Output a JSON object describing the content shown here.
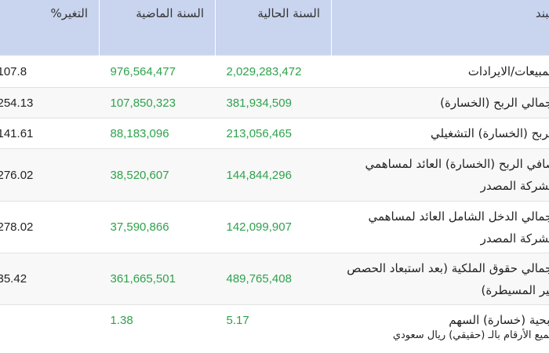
{
  "table": {
    "headers": [
      "البند",
      "السنة الحالية",
      "السنة الماضية",
      "التغير%"
    ],
    "rows": [
      {
        "label": "المبيعات/الايرادات",
        "current": "2,029,283,472",
        "previous": "976,564,477",
        "change": "107.8"
      },
      {
        "label": "إجمالي الربح (الخسارة)",
        "current": "381,934,509",
        "previous": "107,850,323",
        "change": "254.13"
      },
      {
        "label": "الربح (الخسارة) التشغيلي",
        "current": "213,056,465",
        "previous": "88,183,096",
        "change": "141.61"
      },
      {
        "label": "صافي الربح (الخسارة) العائد لمساهمي الشركة المصدر",
        "current": "144,844,296",
        "previous": "38,520,607",
        "change": "276.02"
      },
      {
        "label": "إجمالي الدخل الشامل العائد لمساهمي الشركة المصدر",
        "current": "142,099,907",
        "previous": "37,590,866",
        "change": "278.02"
      },
      {
        "label": "إجمالي حقوق الملكية (بعد استبعاد الحصص غير المسيطرة)",
        "current": "489,765,408",
        "previous": "361,665,501",
        "change": "35.42"
      },
      {
        "label": "ربحية (خسارة) السهم",
        "current": "5.17",
        "previous": "1.38",
        "change": ""
      }
    ]
  },
  "footnote": "جميع الأرقام بالـ (حقيقي) ريال سعودي",
  "colors": {
    "header_bg": "#c9d4ee",
    "value_green": "#2ea24c",
    "row_alt": "#f8f8f8"
  }
}
